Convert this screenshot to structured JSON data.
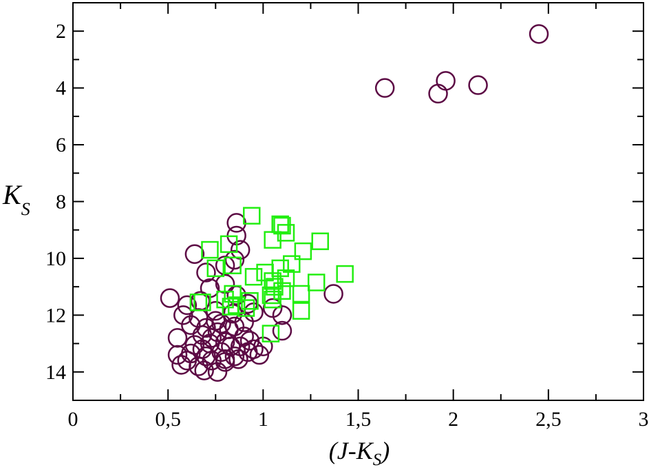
{
  "chart_data": {
    "type": "scatter",
    "xlabel": "(J-K",
    "xlabel_sub": "S",
    "xlabel_close": ")",
    "ylabel": "K",
    "ylabel_sub": "S",
    "xlim": [
      0,
      3
    ],
    "ylim": [
      15,
      1
    ],
    "y_inverted": true,
    "x_ticks": [
      {
        "value": 0,
        "label": "0"
      },
      {
        "value": 0.5,
        "label": "0,5"
      },
      {
        "value": 1,
        "label": "1"
      },
      {
        "value": 1.5,
        "label": "1,5"
      },
      {
        "value": 2,
        "label": "2"
      },
      {
        "value": 2.5,
        "label": "2,5"
      },
      {
        "value": 3,
        "label": "3"
      }
    ],
    "y_ticks": [
      {
        "value": 2,
        "label": "2"
      },
      {
        "value": 4,
        "label": "4"
      },
      {
        "value": 6,
        "label": "6"
      },
      {
        "value": 8,
        "label": "8"
      },
      {
        "value": 10,
        "label": "10"
      },
      {
        "value": 12,
        "label": "12"
      },
      {
        "value": 14,
        "label": "14"
      }
    ],
    "grid": false,
    "series": [
      {
        "marker": "circle",
        "color": "#5c0a44",
        "points": [
          [
            2.45,
            2.1
          ],
          [
            1.64,
            4.0
          ],
          [
            1.96,
            3.75
          ],
          [
            1.92,
            4.2
          ],
          [
            2.13,
            3.9
          ],
          [
            0.86,
            8.75
          ],
          [
            0.86,
            9.2
          ],
          [
            0.88,
            9.7
          ],
          [
            0.64,
            9.85
          ],
          [
            0.8,
            10.25
          ],
          [
            0.7,
            10.5
          ],
          [
            0.85,
            10.05
          ],
          [
            1.37,
            11.25
          ],
          [
            0.51,
            11.4
          ],
          [
            0.6,
            11.65
          ],
          [
            0.67,
            11.5
          ],
          [
            0.72,
            11.05
          ],
          [
            0.8,
            10.9
          ],
          [
            0.86,
            11.3
          ],
          [
            0.92,
            11.6
          ],
          [
            0.58,
            12.0
          ],
          [
            0.66,
            12.1
          ],
          [
            0.75,
            11.85
          ],
          [
            0.84,
            11.95
          ],
          [
            0.95,
            11.9
          ],
          [
            1.05,
            11.75
          ],
          [
            1.1,
            12.0
          ],
          [
            0.62,
            12.35
          ],
          [
            0.7,
            12.45
          ],
          [
            0.78,
            12.3
          ],
          [
            0.9,
            12.25
          ],
          [
            0.55,
            12.8
          ],
          [
            0.68,
            12.7
          ],
          [
            0.76,
            12.6
          ],
          [
            0.82,
            12.5
          ],
          [
            0.9,
            12.75
          ],
          [
            1.1,
            12.55
          ],
          [
            0.64,
            13.05
          ],
          [
            0.72,
            13.0
          ],
          [
            0.8,
            12.95
          ],
          [
            0.88,
            13.1
          ],
          [
            0.95,
            13.2
          ],
          [
            1.0,
            13.1
          ],
          [
            0.55,
            13.4
          ],
          [
            0.62,
            13.35
          ],
          [
            0.7,
            13.45
          ],
          [
            0.78,
            13.3
          ],
          [
            0.85,
            13.45
          ],
          [
            0.92,
            13.3
          ],
          [
            0.98,
            13.4
          ],
          [
            0.57,
            13.75
          ],
          [
            0.66,
            13.8
          ],
          [
            0.73,
            13.6
          ],
          [
            0.8,
            13.65
          ],
          [
            0.87,
            13.55
          ],
          [
            0.69,
            13.95
          ],
          [
            0.76,
            14.0
          ],
          [
            0.6,
            13.6
          ],
          [
            0.83,
            13.1
          ],
          [
            0.75,
            12.2
          ],
          [
            0.85,
            12.4
          ],
          [
            0.93,
            12.9
          ],
          [
            0.73,
            12.8
          ],
          [
            0.68,
            13.2
          ],
          [
            0.8,
            13.55
          ]
        ]
      },
      {
        "marker": "square",
        "color": "#22ee11",
        "points": [
          [
            0.94,
            8.5
          ],
          [
            1.09,
            8.8
          ],
          [
            1.12,
            9.1
          ],
          [
            1.05,
            9.35
          ],
          [
            1.21,
            9.75
          ],
          [
            0.72,
            9.7
          ],
          [
            0.82,
            9.5
          ],
          [
            1.3,
            9.4
          ],
          [
            0.75,
            10.35
          ],
          [
            0.84,
            10.25
          ],
          [
            1.01,
            10.5
          ],
          [
            1.09,
            10.35
          ],
          [
            1.15,
            10.2
          ],
          [
            1.43,
            10.55
          ],
          [
            0.95,
            10.65
          ],
          [
            1.05,
            10.8
          ],
          [
            1.12,
            10.7
          ],
          [
            1.28,
            10.85
          ],
          [
            1.06,
            11.0
          ],
          [
            1.1,
            11.15
          ],
          [
            0.84,
            11.25
          ],
          [
            1.04,
            11.3
          ],
          [
            1.2,
            11.25
          ],
          [
            0.66,
            11.55
          ],
          [
            0.8,
            11.45
          ],
          [
            0.86,
            11.65
          ],
          [
            0.93,
            11.5
          ],
          [
            1.05,
            11.45
          ],
          [
            0.83,
            11.7
          ],
          [
            0.91,
            11.75
          ],
          [
            1.2,
            11.85
          ],
          [
            1.04,
            12.65
          ],
          [
            0.68,
            11.55
          ],
          [
            1.1,
            8.85
          ]
        ]
      }
    ]
  }
}
